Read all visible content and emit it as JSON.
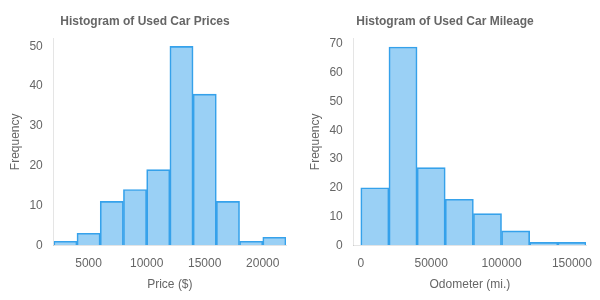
{
  "chart_data": [
    {
      "type": "histogram",
      "title": "Histogram of Used Car Prices",
      "xlabel": "Price ($)",
      "ylabel": "Frequency",
      "bins": [
        2000,
        4000,
        6000,
        8000,
        10000,
        12000,
        14000,
        16000,
        18000,
        20000,
        22000
      ],
      "values": [
        1,
        3,
        11,
        14,
        19,
        50,
        38,
        11,
        1,
        2
      ],
      "xlim": [
        2000,
        22000
      ],
      "xticks": [
        5000,
        10000,
        15000,
        20000
      ],
      "ylim": [
        0,
        52
      ],
      "yticks": [
        0,
        10,
        20,
        30,
        40,
        50
      ],
      "grid": false
    },
    {
      "type": "histogram",
      "title": "Histogram of Used Car Mileage",
      "xlabel": "Odometer (mi.)",
      "ylabel": "Frequency",
      "bins": [
        0,
        20000,
        40000,
        60000,
        80000,
        100000,
        120000,
        140000,
        160000
      ],
      "values": [
        20,
        69,
        27,
        16,
        11,
        5,
        1,
        1
      ],
      "xlim": [
        -5000,
        160000
      ],
      "xticks": [
        0,
        50000,
        100000,
        150000
      ],
      "ylim": [
        0,
        72
      ],
      "yticks": [
        0,
        10,
        20,
        30,
        40,
        50,
        60,
        70
      ],
      "grid": false
    }
  ]
}
